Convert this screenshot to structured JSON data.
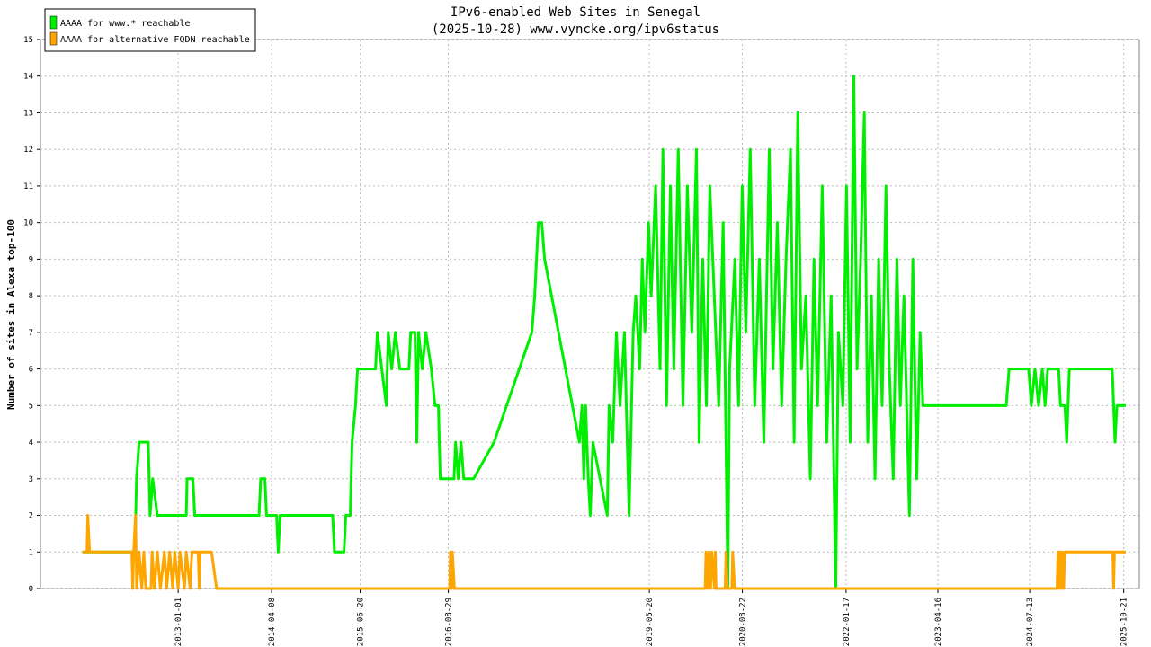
{
  "chart_data": {
    "type": "line",
    "title": "IPv6-enabled Web Sites in Senegal",
    "subtitle": "(2025-10-28) www.vyncke.org/ipv6status",
    "y_label": "Number of sites in Alexa top-100",
    "legend": "upper left",
    "grid": true,
    "xlim": [
      "2011-02-20",
      "2026-01-06"
    ],
    "xticks": [
      "2013-01-01",
      "2014-04-08",
      "2015-06-20",
      "2016-08-29",
      "2019-05-20",
      "2020-08-22",
      "2022-01-17",
      "2023-04-16",
      "2024-07-13",
      "2025-10-21"
    ],
    "ylim": [
      0,
      15
    ],
    "yticks": [
      0,
      1,
      2,
      3,
      4,
      5,
      6,
      7,
      8,
      9,
      10,
      11,
      12,
      13,
      14,
      15
    ],
    "series": [
      {
        "name": "AAAA for www.* reachable",
        "color": "#00ee00",
        "x": [
          "2011-09-16",
          "2012-06-01",
          "2012-06-09",
          "2012-06-22",
          "2012-08-06",
          "2012-08-15",
          "2012-08-28",
          "2012-09-20",
          "2013-02-10",
          "2013-02-14",
          "2013-03-15",
          "2013-03-24",
          "2014-02-05",
          "2014-02-13",
          "2014-03-06",
          "2014-03-14",
          "2014-05-03",
          "2014-05-11",
          "2014-05-20",
          "2015-02-04",
          "2015-02-13",
          "2015-04-01",
          "2015-04-10",
          "2015-05-02",
          "2015-05-11",
          "2015-05-28",
          "2015-06-07",
          "2015-09-04",
          "2015-09-13",
          "2015-10-05",
          "2015-10-27",
          "2015-11-06",
          "2015-11-23",
          "2015-12-11",
          "2016-01-02",
          "2016-02-16",
          "2016-02-25",
          "2016-03-17",
          "2016-03-26",
          "2016-04-04",
          "2016-04-22",
          "2016-05-10",
          "2016-06-06",
          "2016-06-24",
          "2016-07-11",
          "2016-07-20",
          "2016-09-26",
          "2016-10-04",
          "2016-10-17",
          "2016-10-31",
          "2016-11-13",
          "2017-01-01",
          "2017-04-12",
          "2017-10-16",
          "2017-10-30",
          "2017-11-08",
          "2017-11-17",
          "2017-12-04",
          "2017-12-18",
          "2018-06-08",
          "2018-06-21",
          "2018-06-30",
          "2018-07-09",
          "2018-07-22",
          "2018-08-01",
          "2018-08-14",
          "2018-10-24",
          "2018-11-02",
          "2018-11-20",
          "2018-12-08",
          "2018-12-26",
          "2019-01-17",
          "2019-02-09",
          "2019-03-01",
          "2019-03-14",
          "2019-04-02",
          "2019-04-15",
          "2019-04-28",
          "2019-05-16",
          "2019-05-29",
          "2019-06-20",
          "2019-07-12",
          "2019-07-26",
          "2019-08-13",
          "2019-09-01",
          "2019-09-18",
          "2019-10-10",
          "2019-11-02",
          "2019-11-24",
          "2019-12-16",
          "2020-01-08",
          "2020-01-21",
          "2020-02-08",
          "2020-02-26",
          "2020-03-14",
          "2020-04-05",
          "2020-04-27",
          "2020-05-19",
          "2020-06-02",
          "2020-06-11",
          "2020-06-20",
          "2020-07-16",
          "2020-08-03",
          "2020-08-21",
          "2020-09-08",
          "2020-09-30",
          "2020-10-22",
          "2020-11-14",
          "2020-12-06",
          "2021-01-02",
          "2021-01-20",
          "2021-02-11",
          "2021-03-04",
          "2021-03-26",
          "2021-04-17",
          "2021-05-05",
          "2021-05-23",
          "2021-06-10",
          "2021-07-02",
          "2021-07-24",
          "2021-08-11",
          "2021-08-29",
          "2021-09-21",
          "2021-10-13",
          "2021-11-04",
          "2021-11-18",
          "2021-11-27",
          "2021-12-10",
          "2022-01-01",
          "2022-01-19",
          "2022-02-06",
          "2022-02-24",
          "2022-03-12",
          "2022-03-30",
          "2022-04-17",
          "2022-05-04",
          "2022-05-22",
          "2022-06-09",
          "2022-06-27",
          "2022-07-14",
          "2022-08-02",
          "2022-08-19",
          "2022-09-07",
          "2022-09-25",
          "2022-10-12",
          "2022-10-30",
          "2022-11-17",
          "2022-11-26",
          "2022-12-13",
          "2023-01-01",
          "2023-01-18",
          "2023-02-01",
          "2023-02-14",
          "2024-03-19",
          "2024-04-02",
          "2024-07-08",
          "2024-07-21",
          "2024-08-08",
          "2024-08-26",
          "2024-09-13",
          "2024-09-27",
          "2024-10-10",
          "2024-12-03",
          "2024-12-12",
          "2025-01-03",
          "2025-01-12",
          "2025-01-25",
          "2025-08-25",
          "2025-09-08",
          "2025-09-17",
          "2025-10-31"
        ],
        "values": [
          1,
          1,
          3,
          4,
          4,
          2,
          3,
          2,
          2,
          3,
          3,
          2,
          2,
          3,
          3,
          2,
          2,
          1,
          2,
          2,
          1,
          1,
          2,
          2,
          4,
          5,
          6,
          6,
          7,
          6,
          5,
          7,
          6,
          7,
          6,
          6,
          7,
          7,
          4,
          7,
          6,
          7,
          6,
          5,
          5,
          3,
          3,
          4,
          3,
          4,
          3,
          3,
          4,
          7,
          8,
          9,
          10,
          10,
          9,
          4,
          5,
          3,
          5,
          3,
          2,
          4,
          2,
          5,
          4,
          7,
          5,
          7,
          2,
          7,
          8,
          6,
          9,
          7,
          10,
          8,
          11,
          6,
          12,
          5,
          11,
          6,
          12,
          5,
          11,
          7,
          12,
          4,
          9,
          5,
          11,
          8,
          5,
          10,
          4,
          0,
          6,
          9,
          5,
          11,
          7,
          12,
          5,
          9,
          4,
          12,
          6,
          10,
          5,
          9,
          12,
          4,
          13,
          6,
          8,
          3,
          9,
          5,
          11,
          4,
          8,
          3,
          0,
          7,
          5,
          11,
          4,
          14,
          6,
          9,
          13,
          4,
          8,
          3,
          9,
          5,
          11,
          6,
          3,
          9,
          5,
          8,
          4,
          2,
          9,
          3,
          7,
          5,
          5,
          5,
          6,
          6,
          5,
          6,
          5,
          6,
          5,
          6,
          6,
          5,
          5,
          4,
          6,
          6,
          4,
          5,
          5
        ]
      },
      {
        "name": "AAAA for alternative FQDN reachable",
        "color": "#ffa500",
        "x": [
          "2011-09-16",
          "2011-10-08",
          "2011-10-12",
          "2011-10-21",
          "2012-05-17",
          "2012-05-21",
          "2012-05-26",
          "2012-06-04",
          "2012-06-10",
          "2012-06-22",
          "2012-07-05",
          "2012-07-15",
          "2012-07-25",
          "2012-08-20",
          "2012-08-25",
          "2012-09-05",
          "2012-09-20",
          "2012-10-05",
          "2012-10-25",
          "2012-11-05",
          "2012-11-20",
          "2012-12-05",
          "2012-12-15",
          "2013-01-01",
          "2013-01-10",
          "2013-02-01",
          "2013-02-10",
          "2013-03-01",
          "2013-03-10",
          "2013-04-10",
          "2013-04-15",
          "2013-04-20",
          "2013-06-15",
          "2013-07-10",
          "2016-09-05",
          "2016-09-08",
          "2016-09-14",
          "2016-09-18",
          "2016-09-28",
          "2020-02-20",
          "2020-02-24",
          "2020-03-04",
          "2020-03-10",
          "2020-03-18",
          "2020-03-24",
          "2020-04-06",
          "2020-04-10",
          "2020-04-14",
          "2020-05-29",
          "2020-06-02",
          "2020-06-08",
          "2020-07-01",
          "2020-07-05",
          "2020-07-15",
          "2024-11-25",
          "2024-11-30",
          "2024-12-05",
          "2024-12-10",
          "2024-12-15",
          "2024-12-20",
          "2024-12-28",
          "2025-01-02",
          "2025-08-28",
          "2025-09-01",
          "2025-09-05",
          "2025-10-31"
        ],
        "values": [
          1,
          1,
          2,
          1,
          1,
          0,
          1,
          2,
          0,
          1,
          0,
          1,
          0,
          0,
          1,
          0,
          1,
          0,
          1,
          0,
          1,
          0,
          1,
          0,
          1,
          0,
          1,
          0,
          1,
          1,
          0,
          1,
          1,
          0,
          0,
          1,
          0,
          1,
          0,
          0,
          1,
          0,
          1,
          0,
          1,
          0,
          1,
          0,
          0,
          1,
          0,
          0,
          1,
          0,
          0,
          1,
          0,
          1,
          0,
          1,
          0,
          1,
          1,
          0,
          1,
          1
        ]
      }
    ]
  }
}
